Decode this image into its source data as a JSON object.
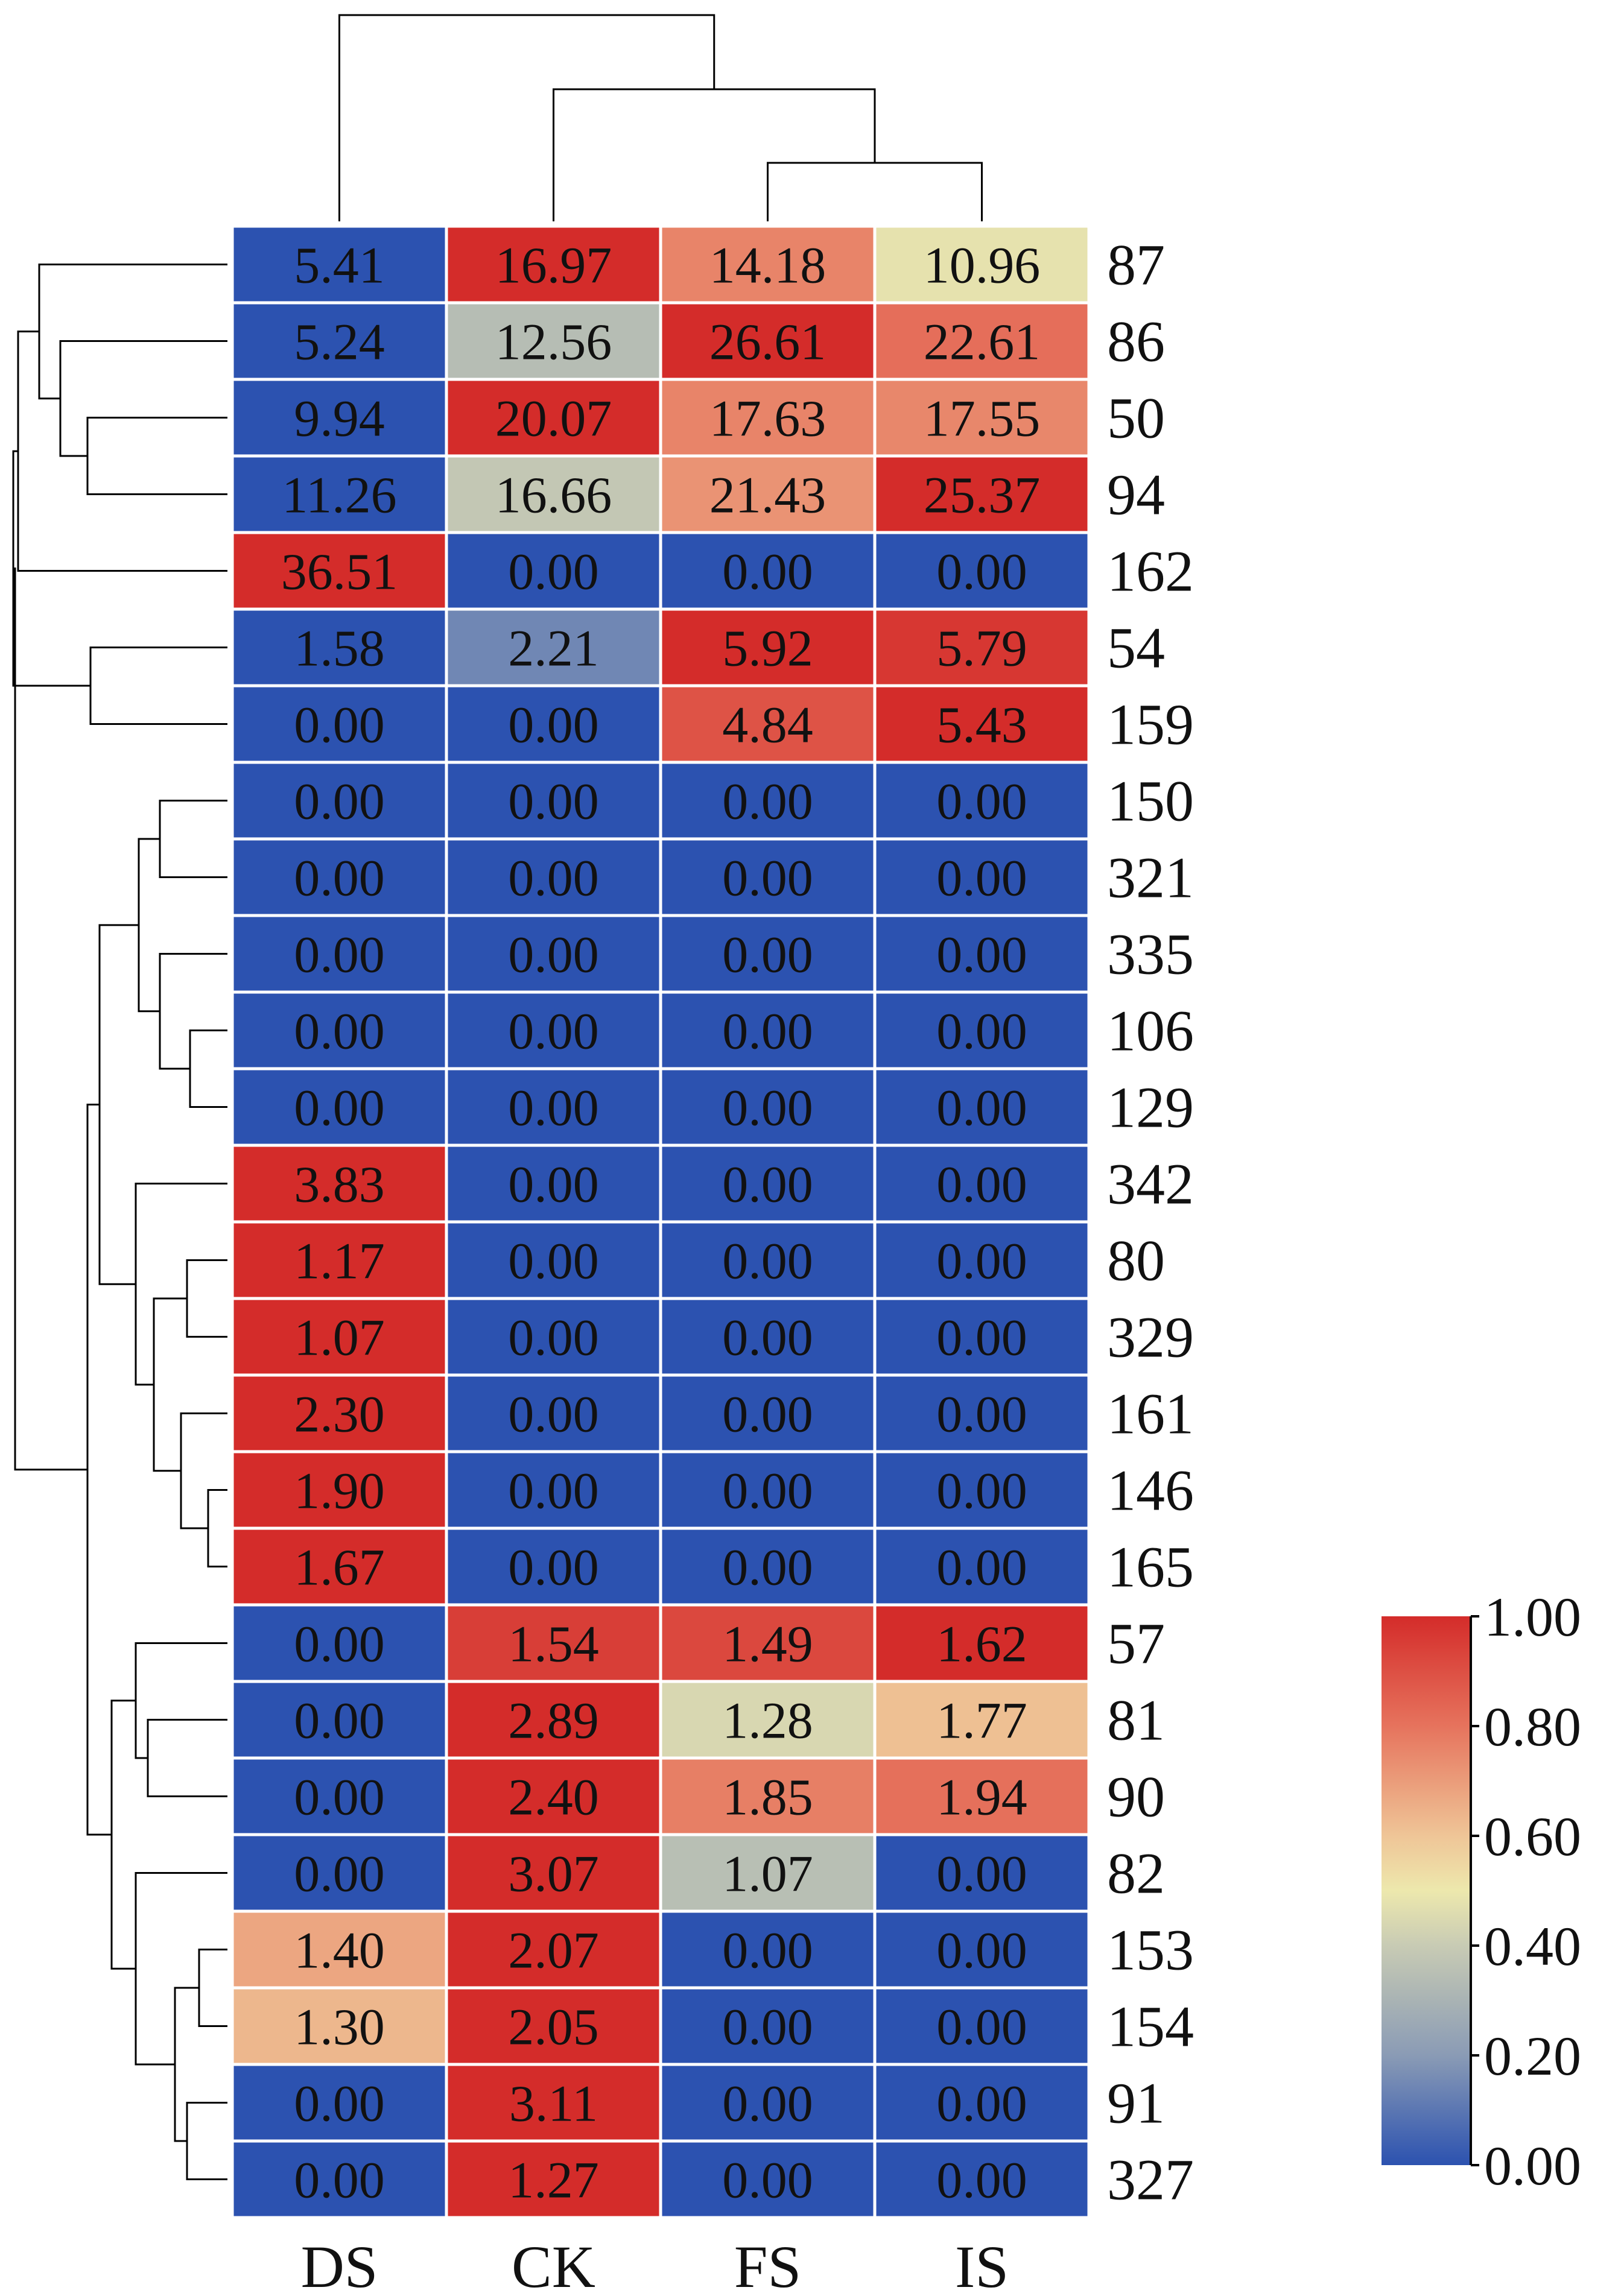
{
  "chart_data": {
    "type": "heatmap",
    "title": "",
    "columns": [
      "DS",
      "CK",
      "FS",
      "IS"
    ],
    "rows": [
      {
        "label": "87",
        "values": [
          5.41,
          16.97,
          14.18,
          10.96
        ],
        "display": [
          "5.41",
          "16.97",
          "14.18",
          "10.96"
        ]
      },
      {
        "label": "86",
        "values": [
          5.24,
          12.56,
          26.61,
          22.61
        ],
        "display": [
          "5.24",
          "12.56",
          "26.61",
          "22.61"
        ]
      },
      {
        "label": "50",
        "values": [
          9.94,
          20.07,
          17.63,
          17.55
        ],
        "display": [
          "9.94",
          "20.07",
          "17.63",
          "17.55"
        ]
      },
      {
        "label": "94",
        "values": [
          11.26,
          16.66,
          21.43,
          25.37
        ],
        "display": [
          "11.26",
          "16.66",
          "21.43",
          "25.37"
        ]
      },
      {
        "label": "162",
        "values": [
          36.51,
          0.0,
          0.0,
          0.0
        ],
        "display": [
          "36.51",
          "0.00",
          "0.00",
          "0.00"
        ]
      },
      {
        "label": "54",
        "values": [
          1.58,
          2.21,
          5.92,
          5.79
        ],
        "display": [
          "1.58",
          "2.21",
          "5.92",
          "5.79"
        ]
      },
      {
        "label": "159",
        "values": [
          0.0,
          0.0,
          4.84,
          5.43
        ],
        "display": [
          "0.00",
          "0.00",
          "4.84",
          "5.43"
        ]
      },
      {
        "label": "150",
        "values": [
          0.0,
          0.0,
          0.0,
          0.0
        ],
        "display": [
          "0.00",
          "0.00",
          "0.00",
          "0.00"
        ]
      },
      {
        "label": "321",
        "values": [
          0.0,
          0.0,
          0.0,
          0.0
        ],
        "display": [
          "0.00",
          "0.00",
          "0.00",
          "0.00"
        ]
      },
      {
        "label": "335",
        "values": [
          0.0,
          0.0,
          0.0,
          0.0
        ],
        "display": [
          "0.00",
          "0.00",
          "0.00",
          "0.00"
        ]
      },
      {
        "label": "106",
        "values": [
          0.0,
          0.0,
          0.0,
          0.0
        ],
        "display": [
          "0.00",
          "0.00",
          "0.00",
          "0.00"
        ]
      },
      {
        "label": "129",
        "values": [
          0.0,
          0.0,
          0.0,
          0.0
        ],
        "display": [
          "0.00",
          "0.00",
          "0.00",
          "0.00"
        ]
      },
      {
        "label": "342",
        "values": [
          3.83,
          0.0,
          0.0,
          0.0
        ],
        "display": [
          "3.83",
          "0.00",
          "0.00",
          "0.00"
        ]
      },
      {
        "label": "80",
        "values": [
          1.17,
          0.0,
          0.0,
          0.0
        ],
        "display": [
          "1.17",
          "0.00",
          "0.00",
          "0.00"
        ]
      },
      {
        "label": "329",
        "values": [
          1.07,
          0.0,
          0.0,
          0.0
        ],
        "display": [
          "1.07",
          "0.00",
          "0.00",
          "0.00"
        ]
      },
      {
        "label": "161",
        "values": [
          2.3,
          0.0,
          0.0,
          0.0
        ],
        "display": [
          "2.30",
          "0.00",
          "0.00",
          "0.00"
        ]
      },
      {
        "label": "146",
        "values": [
          1.9,
          0.0,
          0.0,
          0.0
        ],
        "display": [
          "1.90",
          "0.00",
          "0.00",
          "0.00"
        ]
      },
      {
        "label": "165",
        "values": [
          1.67,
          0.0,
          0.0,
          0.0
        ],
        "display": [
          "1.67",
          "0.00",
          "0.00",
          "0.00"
        ]
      },
      {
        "label": "57",
        "values": [
          0.0,
          1.54,
          1.49,
          1.62
        ],
        "display": [
          "0.00",
          "1.54",
          "1.49",
          "1.62"
        ]
      },
      {
        "label": "81",
        "values": [
          0.0,
          2.89,
          1.28,
          1.77
        ],
        "display": [
          "0.00",
          "2.89",
          "1.28",
          "1.77"
        ]
      },
      {
        "label": "90",
        "values": [
          0.0,
          2.4,
          1.85,
          1.94
        ],
        "display": [
          "0.00",
          "2.40",
          "1.85",
          "1.94"
        ]
      },
      {
        "label": "82",
        "values": [
          0.0,
          3.07,
          1.07,
          0.0
        ],
        "display": [
          "0.00",
          "3.07",
          "1.07",
          "0.00"
        ]
      },
      {
        "label": "153",
        "values": [
          1.4,
          2.07,
          0.0,
          0.0
        ],
        "display": [
          "1.40",
          "2.07",
          "0.00",
          "0.00"
        ]
      },
      {
        "label": "154",
        "values": [
          1.3,
          2.05,
          0.0,
          0.0
        ],
        "display": [
          "1.30",
          "2.05",
          "0.00",
          "0.00"
        ]
      },
      {
        "label": "91",
        "values": [
          0.0,
          3.11,
          0.0,
          0.0
        ],
        "display": [
          "0.00",
          "3.11",
          "0.00",
          "0.00"
        ]
      },
      {
        "label": "327",
        "values": [
          0.0,
          1.27,
          0.0,
          0.0
        ],
        "display": [
          "0.00",
          "1.27",
          "0.00",
          "0.00"
        ]
      }
    ],
    "color_scale": {
      "range": [
        0.0,
        1.0
      ],
      "stops": [
        {
          "value": 0.0,
          "color": "#2c52b0"
        },
        {
          "value": 0.2,
          "color": "#8a9bb5"
        },
        {
          "value": 0.4,
          "color": "#c8cbb4"
        },
        {
          "value": 0.5,
          "color": "#ede8ad"
        },
        {
          "value": 0.6,
          "color": "#efc597"
        },
        {
          "value": 0.8,
          "color": "#e6735d"
        },
        {
          "value": 1.0,
          "color": "#d42c2a"
        }
      ],
      "ticks": [
        "1.00",
        "0.80",
        "0.60",
        "0.40",
        "0.20",
        "0.00"
      ],
      "normalization": "row-wise min-max"
    },
    "row_dendrogram": "left",
    "column_dendrogram": "top",
    "grid_line_color": "#ffffff"
  }
}
